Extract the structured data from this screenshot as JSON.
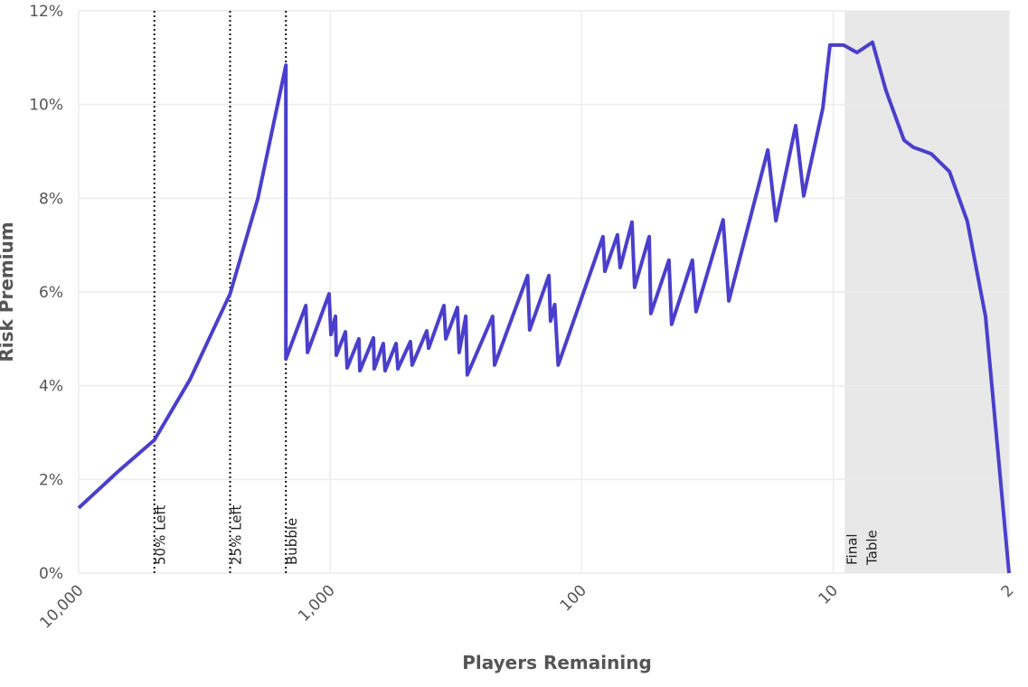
{
  "chart_data": {
    "type": "line",
    "x_label": "Players Remaining",
    "y_label": "Risk Premium",
    "x_scale": "log",
    "grid": true,
    "xlim": [
      10000,
      2
    ],
    "ylim": [
      0,
      12
    ],
    "xticks": [
      {
        "value": 10000,
        "label": "10,000"
      },
      {
        "value": 1000,
        "label": "1,000"
      },
      100,
      10,
      2
    ],
    "yticks": [
      {
        "value": 0,
        "label": "0%"
      },
      {
        "value": 2,
        "label": "2%"
      },
      {
        "value": 4,
        "label": "4%"
      },
      {
        "value": 6,
        "label": "6%"
      },
      {
        "value": 8,
        "label": "8%"
      },
      {
        "value": 10,
        "label": "10%"
      },
      {
        "value": 12,
        "label": "12%"
      }
    ],
    "markers": [
      {
        "x": 5000,
        "label": "50% Left"
      },
      {
        "x": 2500,
        "label": "25% Left"
      },
      {
        "x": 1500,
        "label": "Bubble"
      }
    ],
    "shaded_region": {
      "from": 9,
      "to": 2,
      "label": [
        "Final",
        "Table"
      ],
      "color": "#e8e8e8"
    },
    "series": [
      {
        "name": "Risk Premium",
        "color": "#4a3fcc",
        "x": [
          10000,
          7000,
          5000,
          3610,
          2500,
          1940,
          1500,
          1500,
          1250,
          1230,
          1010,
          993,
          953,
          945,
          870,
          856,
          769,
          762,
          673,
          668,
          615,
          605,
          547,
          538,
          480,
          472,
          413,
          406,
          353,
          347,
          312,
          307,
          289,
          285,
          226,
          222,
          164,
          161,
          135,
          133,
          128,
          124,
          82.3,
          80.9,
          72.1,
          70.3,
          63.1,
          61.6,
          53.9,
          53.1,
          45.0,
          43.9,
          36.3,
          35.1,
          27.4,
          26.0,
          18.2,
          16.9,
          14.1,
          13.1,
          11.0,
          10.3,
          9.1,
          8.04,
          6.98,
          6.17,
          5.23,
          4.81,
          4.08,
          3.45,
          2.93,
          2.48,
          2
        ],
        "values": [
          1.39,
          2.16,
          2.84,
          4.13,
          5.96,
          7.99,
          10.84,
          4.57,
          5.71,
          4.71,
          5.96,
          5.09,
          5.48,
          4.65,
          5.15,
          4.38,
          5.0,
          4.32,
          5.02,
          4.36,
          4.9,
          4.32,
          4.9,
          4.36,
          4.94,
          4.44,
          5.17,
          4.8,
          5.71,
          5.0,
          5.67,
          4.71,
          5.48,
          4.23,
          5.48,
          4.44,
          6.35,
          5.19,
          6.35,
          5.38,
          5.73,
          4.44,
          7.18,
          6.44,
          7.22,
          6.52,
          7.49,
          6.1,
          7.18,
          5.54,
          6.68,
          5.31,
          6.68,
          5.58,
          7.54,
          5.81,
          9.03,
          7.52,
          9.55,
          8.05,
          9.92,
          11.27,
          11.27,
          11.11,
          11.33,
          10.3,
          9.24,
          9.09,
          8.95,
          8.57,
          7.51,
          5.48,
          0
        ]
      }
    ]
  }
}
